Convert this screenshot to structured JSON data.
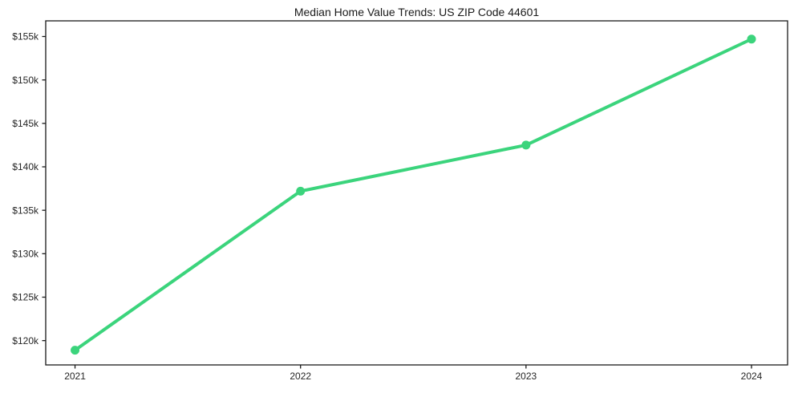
{
  "title": "Median Home Value Trends: US ZIP Code 44601",
  "chart_data": {
    "type": "line",
    "title": "Median Home Value Trends: US ZIP Code 44601",
    "xlabel": "",
    "ylabel": "",
    "x": [
      2021,
      2022,
      2023,
      2024
    ],
    "categories": [
      "2021",
      "2022",
      "2023",
      "2024"
    ],
    "values": [
      118900,
      137200,
      142500,
      154700
    ],
    "xtick_labels": [
      "2021",
      "2022",
      "2023",
      "2024"
    ],
    "yticks": [
      120000,
      125000,
      130000,
      135000,
      140000,
      145000,
      150000,
      155000
    ],
    "ytick_labels": [
      "$120k",
      "$125k",
      "$130k",
      "$135k",
      "$140k",
      "$145k",
      "$150k",
      "$155k"
    ],
    "xlim": [
      2020.87,
      2024.16
    ],
    "ylim": [
      117200,
      156800
    ],
    "grid": false,
    "legend": "none",
    "colors": {
      "line": "#3bd47c",
      "marker": "#3bd47c",
      "spine": "#1a1a1a",
      "tick_text": "#262626",
      "background": "#ffffff"
    }
  }
}
